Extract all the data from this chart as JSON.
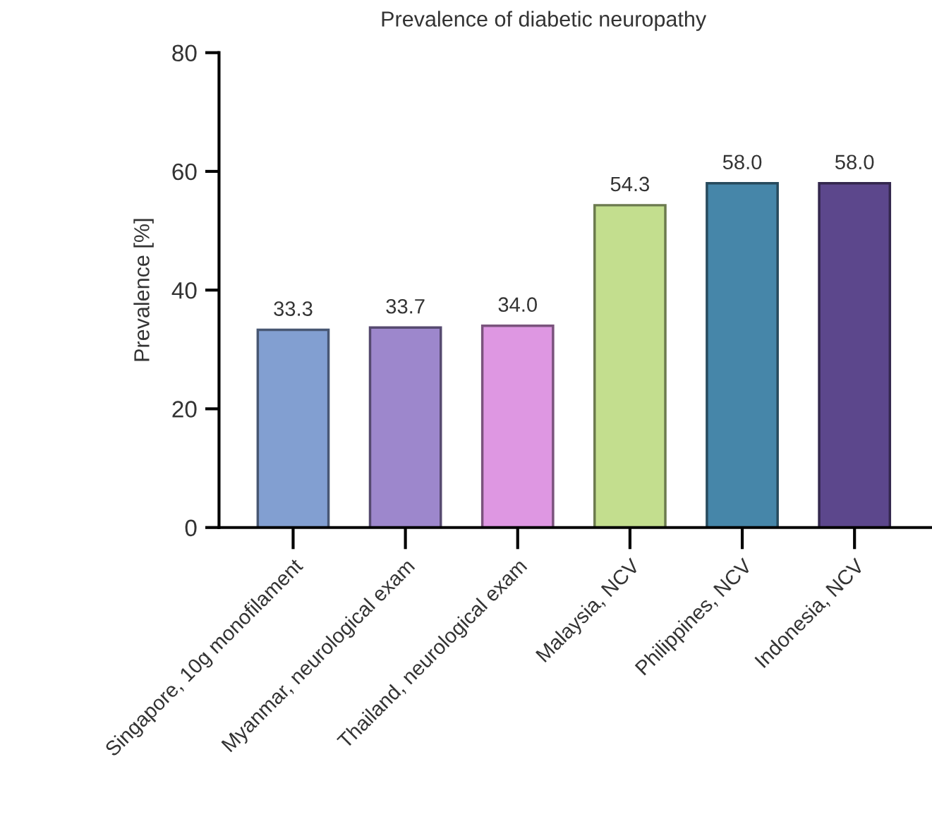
{
  "chart_data": {
    "type": "bar",
    "title": "Prevalence of diabetic neuropathy",
    "ylabel": "Prevalence [%]",
    "categories": [
      "Singapore, 10g monofilament",
      "Myanmar, neurological exam",
      "Thailand, neurological exam",
      "Malaysia, NCV",
      "Philippines, NCV",
      "Indonesia, NCV"
    ],
    "values": [
      33.3,
      33.7,
      34.0,
      54.3,
      58.0,
      58.0
    ],
    "colors": [
      "#829fd1",
      "#9d87cc",
      "#de97e2",
      "#c3de8e",
      "#4686a9",
      "#5c478c"
    ],
    "ylim": [
      0,
      80
    ],
    "yticks": [
      0,
      20,
      40,
      60,
      80
    ],
    "value_labels": [
      "33.3",
      "33.7",
      "34.0",
      "54.3",
      "58.0",
      "58.0"
    ],
    "grid": false,
    "legend": false
  }
}
